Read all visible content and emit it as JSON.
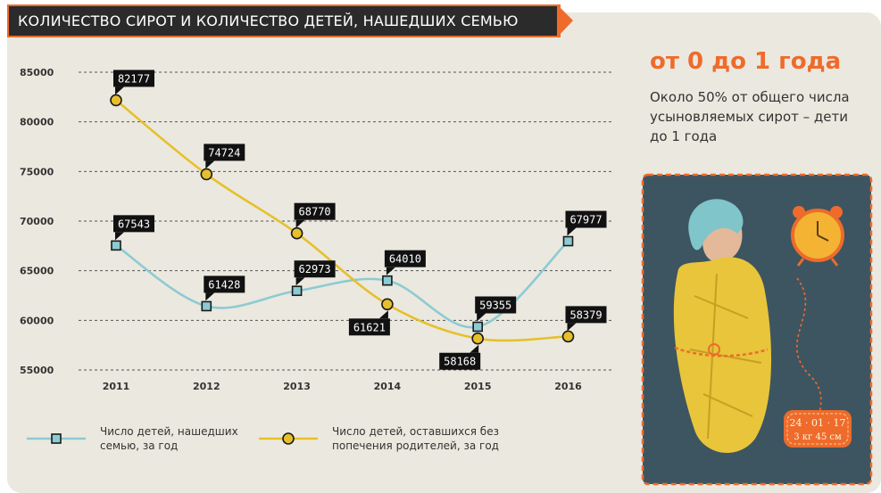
{
  "title": "КОЛИЧЕСТВО СИРОТ И КОЛИЧЕСТВО ДЕТЕЙ, НАШЕДШИХ СЕМЬЮ",
  "side": {
    "heading": "от 0 до 1 года",
    "text": "Около 50% от общего числа усыновляемых сирот – дети до 1 года"
  },
  "colors": {
    "background": "#ebe8df",
    "accent": "#ee6b2c",
    "series_adopted": "#8ccbd3",
    "series_orphans": "#e6c02a",
    "label_bg": "#111111"
  },
  "illustration": {
    "tag_line1": "24 · 01 · 17",
    "tag_line2": "3 кг   45 см"
  },
  "legend": {
    "adopted": "Число детей, нашедших семью, за год",
    "orphans": "Число детей, оставшихся без попечения родителей, за год"
  },
  "chart_data": {
    "type": "line",
    "categories": [
      "2011",
      "2012",
      "2013",
      "2014",
      "2015",
      "2016"
    ],
    "yticks": [
      "85000",
      "80000",
      "75000",
      "70000",
      "65000",
      "60000",
      "55000"
    ],
    "ylim": [
      55000,
      85000
    ],
    "grid": true,
    "series": [
      {
        "name": "Число детей, нашедших семью, за год",
        "marker": "square",
        "values": [
          67543,
          61428,
          62973,
          64010,
          59355,
          67977
        ],
        "labels": [
          "67543",
          "61428",
          "62973",
          "64010",
          "59355",
          "67977"
        ]
      },
      {
        "name": "Число детей, оставшихся без попечения родителей, за год",
        "marker": "circle",
        "values": [
          82177,
          74724,
          68770,
          61621,
          58168,
          58379
        ],
        "labels": [
          "82177",
          "74724",
          "68770",
          "61621",
          "58168",
          "58379"
        ]
      }
    ]
  }
}
